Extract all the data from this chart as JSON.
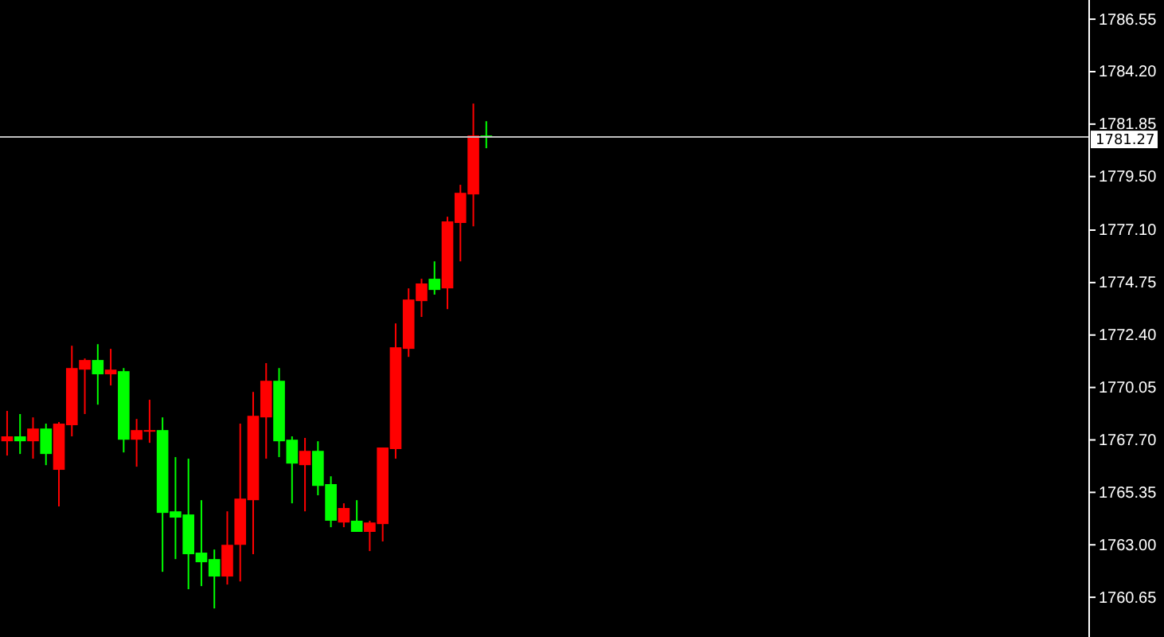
{
  "chart_data": {
    "type": "candlestick",
    "categories": [
      null,
      null,
      null,
      null,
      null,
      null,
      null,
      null,
      null,
      null,
      null,
      null,
      null,
      null,
      null,
      null,
      null,
      null,
      null,
      null,
      null,
      null,
      null,
      null,
      null,
      null,
      null,
      null,
      null,
      null,
      null,
      null,
      null,
      null,
      null,
      null,
      null,
      null,
      null,
      null,
      null,
      null,
      null,
      null,
      null,
      null,
      null,
      null,
      null,
      null,
      null,
      null,
      null,
      null,
      null,
      null,
      null,
      null,
      null,
      null,
      null,
      null,
      null,
      null,
      null,
      null,
      null,
      null,
      null,
      null,
      null,
      null,
      null,
      null,
      null,
      null,
      null,
      null,
      null,
      null,
      null,
      null,
      null,
      null
    ],
    "ohlc": [
      [
        1767.64,
        1769.0,
        1767.0,
        1767.86
      ],
      [
        1767.86,
        1768.86,
        1767.07,
        1767.64
      ],
      [
        1767.64,
        1768.71,
        1766.86,
        1768.21
      ],
      [
        1768.21,
        1768.43,
        1766.57,
        1767.07
      ],
      [
        1766.36,
        1768.5,
        1764.72,
        1768.43
      ],
      [
        1768.36,
        1771.92,
        1767.86,
        1770.92
      ],
      [
        1770.85,
        1771.35,
        1768.86,
        1771.28
      ],
      [
        1771.28,
        1771.99,
        1769.28,
        1770.64
      ],
      [
        1770.64,
        1771.78,
        1770.14,
        1770.85
      ],
      [
        1770.78,
        1770.92,
        1767.14,
        1767.71
      ],
      [
        1767.71,
        1768.64,
        1766.5,
        1768.14
      ],
      [
        1768.07,
        1769.5,
        1767.57,
        1768.14
      ],
      [
        1768.14,
        1768.71,
        1761.79,
        1764.43
      ],
      [
        1764.5,
        1766.93,
        1762.36,
        1764.22
      ],
      [
        1764.36,
        1766.86,
        1761.01,
        1762.58
      ],
      [
        1762.65,
        1765.0,
        1761.15,
        1762.22
      ],
      [
        1762.36,
        1762.79,
        1760.15,
        1761.58
      ],
      [
        1761.58,
        1764.5,
        1761.22,
        1763.0
      ],
      [
        1763.0,
        1768.43,
        1761.36,
        1765.07
      ],
      [
        1765.0,
        1769.85,
        1762.58,
        1768.78
      ],
      [
        1768.71,
        1771.14,
        1766.86,
        1770.35
      ],
      [
        1770.35,
        1770.92,
        1766.93,
        1767.64
      ],
      [
        1767.71,
        1767.86,
        1764.86,
        1766.64
      ],
      [
        1766.57,
        1767.79,
        1764.5,
        1767.21
      ],
      [
        1767.21,
        1767.64,
        1765.22,
        1765.64
      ],
      [
        1765.72,
        1766.07,
        1763.79,
        1764.08
      ],
      [
        1764.0,
        1764.86,
        1763.79,
        1764.65
      ],
      [
        1764.08,
        1765.0,
        1763.58,
        1763.58
      ],
      [
        1763.58,
        1764.08,
        1762.72,
        1764.0
      ],
      [
        1763.93,
        1767.36,
        1763.15,
        1767.36
      ],
      [
        1767.29,
        1772.92,
        1766.86,
        1771.85
      ],
      [
        1771.78,
        1774.49,
        1771.42,
        1773.99
      ],
      [
        1773.92,
        1774.92,
        1773.21,
        1774.71
      ],
      [
        1774.92,
        1775.7,
        1774.21,
        1774.42
      ],
      [
        1774.49,
        1777.7,
        1773.56,
        1777.49
      ],
      [
        1777.42,
        1779.13,
        1775.7,
        1778.77
      ],
      [
        1778.7,
        1782.77,
        1777.27,
        1781.34
      ],
      [
        1781.34,
        1781.98,
        1780.77,
        1781.27
      ],
      null,
      null,
      null,
      null,
      null,
      null,
      null,
      null,
      null,
      null,
      null,
      null,
      null,
      null,
      null,
      null,
      null,
      null,
      null,
      null,
      null,
      null,
      null,
      null,
      null,
      null,
      null,
      null,
      null,
      null,
      null,
      null,
      null,
      null,
      null,
      null,
      null,
      null,
      null,
      null,
      null,
      null,
      null,
      null,
      null,
      null
    ],
    "colors": [
      "#ff0000",
      "#00ff00",
      "#ff0000",
      "#00ff00",
      "#ff0000",
      "#ff0000",
      "#ff0000",
      "#00ff00",
      "#ff0000",
      "#00ff00",
      "#ff0000",
      "#ff0000",
      "#00ff00",
      "#00ff00",
      "#00ff00",
      "#00ff00",
      "#00ff00",
      "#ff0000",
      "#ff0000",
      "#ff0000",
      "#ff0000",
      "#00ff00",
      "#00ff00",
      "#ff0000",
      "#00ff00",
      "#00ff00",
      "#ff0000",
      "#00ff00",
      "#ff0000",
      "#ff0000",
      "#ff0000",
      "#ff0000",
      "#ff0000",
      "#00ff00",
      "#ff0000",
      "#ff0000",
      "#ff0000",
      "#00ff00",
      null,
      null,
      null,
      null,
      null,
      null,
      null,
      null,
      null,
      null,
      null,
      null,
      null,
      null,
      null,
      null,
      null,
      null,
      null,
      null,
      null,
      null,
      null,
      null,
      null,
      null,
      null,
      null,
      null,
      null,
      null,
      null,
      null,
      null,
      null,
      null,
      null,
      null,
      null,
      null,
      null,
      null,
      null,
      null,
      null,
      null
    ],
    "ylim": [
      1758.87,
      1787.41
    ],
    "yticks": [
      1786.55,
      {
        "value": 1784.2,
        "label": "1784.20"
      },
      1781.85,
      {
        "value": 1779.5,
        "label": "1779.50"
      },
      {
        "value": 1777.1,
        "label": "1777.10"
      },
      1774.75,
      {
        "value": 1772.4,
        "label": "1772.40"
      },
      1770.05,
      {
        "value": 1767.7,
        "label": "1767.70"
      },
      1765.35,
      {
        "value": 1763.0,
        "label": "1763.00"
      },
      1760.65
    ],
    "ref_lines": [
      {
        "axis": "y",
        "value": 1781.27,
        "label": "1781.27",
        "color": "#c0c0c0"
      }
    ],
    "tick_labels": "y"
  }
}
